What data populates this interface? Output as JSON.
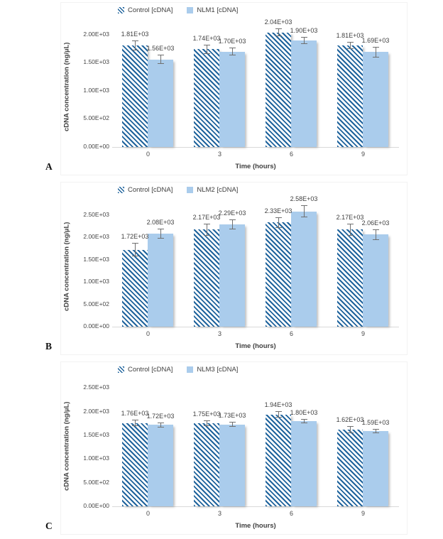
{
  "colors": {
    "control_hatch_blue": "#1F639C",
    "treatment_fill_blue": "#AACCEC",
    "error_bar_gray": "#6F6F6F",
    "axis_line_gray": "#D9D9D9",
    "text_gray": "#404040"
  },
  "chart_data": [
    {
      "type": "bar",
      "panel": "A",
      "title": "",
      "xlabel": "Time (hours)",
      "ylabel": "cDNA concentration (ng/µL)",
      "categories": [
        "0",
        "3",
        "6",
        "9"
      ],
      "y_ticks": [
        "0.00E+00",
        "5.00E+02",
        "1.00E+03",
        "1.50E+03",
        "2.00E+03"
      ],
      "y_tick_values": [
        0,
        500,
        1000,
        1500,
        2000
      ],
      "ylim": [
        0,
        2150
      ],
      "grid": false,
      "legend_position": "top",
      "series": [
        {
          "name": "Control [cDNA]",
          "style": "hatched",
          "values": [
            1810,
            1740,
            2040,
            1810
          ],
          "labels": [
            "1.81E+03",
            "1.74E+03",
            "2.04E+03",
            "1.81E+03"
          ],
          "errors_est": [
            90,
            80,
            70,
            60
          ]
        },
        {
          "name": "NLM1 [cDNA]",
          "style": "solid",
          "values": [
            1560,
            1700,
            1900,
            1690
          ],
          "labels": [
            "1.56E+03",
            "1.70E+03",
            "1.90E+03",
            "1.69E+03"
          ],
          "errors_est": [
            80,
            70,
            60,
            90
          ]
        }
      ]
    },
    {
      "type": "bar",
      "panel": "B",
      "title": "",
      "xlabel": "Time (hours)",
      "ylabel": "cDNA concentration (ng/µL)",
      "categories": [
        "0",
        "3",
        "6",
        "9"
      ],
      "y_ticks": [
        "0.00E+00",
        "5.00E+02",
        "1.00E+03",
        "1.50E+03",
        "2.00E+03",
        "2.50E+03"
      ],
      "y_tick_values": [
        0,
        500,
        1000,
        1500,
        2000,
        2500
      ],
      "ylim": [
        0,
        2700
      ],
      "grid": false,
      "legend_position": "top",
      "series": [
        {
          "name": "Control [cDNA]",
          "style": "hatched",
          "values": [
            1720,
            2170,
            2330,
            2170
          ],
          "labels": [
            "1.72E+03",
            "2.17E+03",
            "2.33E+03",
            "2.17E+03"
          ],
          "errors_est": [
            150,
            140,
            120,
            130
          ]
        },
        {
          "name": "NLM2 [cDNA]",
          "style": "solid",
          "values": [
            2080,
            2290,
            2580,
            2060
          ],
          "labels": [
            "2.08E+03",
            "2.29E+03",
            "2.58E+03",
            "2.06E+03"
          ],
          "errors_est": [
            110,
            110,
            140,
            120
          ]
        }
      ]
    },
    {
      "type": "bar",
      "panel": "C",
      "title": "",
      "xlabel": "Time (hours)",
      "ylabel": "cDNA concentration (ng/µL)",
      "categories": [
        "0",
        "3",
        "6",
        "9"
      ],
      "y_ticks": [
        "0.00E+00",
        "5.00E+02",
        "1.00E+03",
        "1.50E+03",
        "2.00E+03",
        "2.50E+03"
      ],
      "y_tick_values": [
        0,
        500,
        1000,
        1500,
        2000,
        2500
      ],
      "ylim": [
        0,
        2550
      ],
      "grid": false,
      "legend_position": "top",
      "series": [
        {
          "name": "Control [cDNA]",
          "style": "hatched",
          "values": [
            1760,
            1750,
            1940,
            1620
          ],
          "labels": [
            "1.76E+03",
            "1.75E+03",
            "1.94E+03",
            "1.62E+03"
          ],
          "errors_est": [
            70,
            60,
            70,
            70
          ]
        },
        {
          "name": "NLM3 [cDNA]",
          "style": "solid",
          "values": [
            1720,
            1730,
            1800,
            1590
          ],
          "labels": [
            "1.72E+03",
            "1.73E+03",
            "1.80E+03",
            "1.59E+03"
          ],
          "errors_est": [
            50,
            50,
            50,
            50
          ]
        }
      ]
    }
  ]
}
